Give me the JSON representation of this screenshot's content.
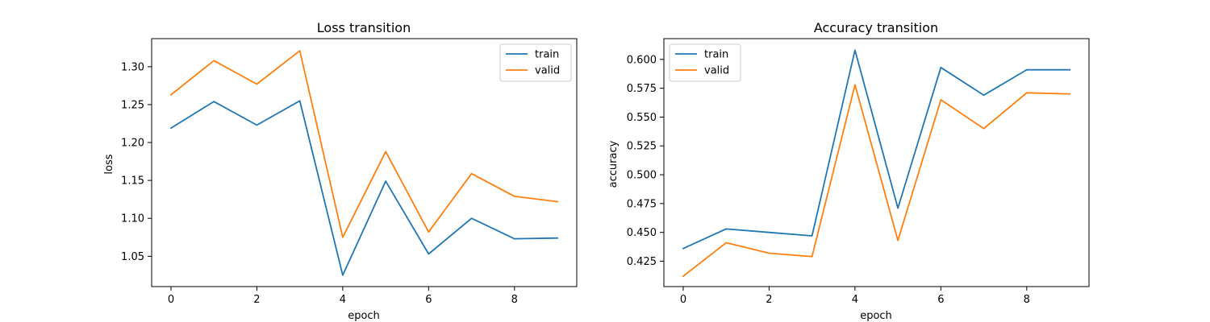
{
  "chart_data": [
    {
      "type": "line",
      "title": "Loss transition",
      "xlabel": "epoch",
      "ylabel": "loss",
      "xlim": [
        -0.45,
        9.45
      ],
      "ylim": [
        1.01,
        1.337
      ],
      "xticks": [
        0,
        2,
        4,
        6,
        8
      ],
      "yticks": [
        1.05,
        1.1,
        1.15,
        1.2,
        1.25,
        1.3
      ],
      "ytick_labels": [
        "1.05",
        "1.10",
        "1.15",
        "1.20",
        "1.25",
        "1.30"
      ],
      "grid": false,
      "legend_position": "top-right",
      "x": [
        0,
        1,
        2,
        3,
        4,
        5,
        6,
        7,
        8,
        9
      ],
      "series": [
        {
          "name": "train",
          "color": "#1f77b4",
          "values": [
            1.219,
            1.254,
            1.223,
            1.255,
            1.025,
            1.149,
            1.053,
            1.1,
            1.073,
            1.074
          ]
        },
        {
          "name": "valid",
          "color": "#ff7f0e",
          "values": [
            1.263,
            1.308,
            1.277,
            1.321,
            1.075,
            1.188,
            1.082,
            1.159,
            1.129,
            1.122
          ]
        }
      ]
    },
    {
      "type": "line",
      "title": "Accuracy transition",
      "xlabel": "epoch",
      "ylabel": "accuracy",
      "xlim": [
        -0.45,
        9.45
      ],
      "ylim": [
        0.403,
        0.618
      ],
      "xticks": [
        0,
        2,
        4,
        6,
        8
      ],
      "yticks": [
        0.425,
        0.45,
        0.475,
        0.5,
        0.525,
        0.55,
        0.575,
        0.6
      ],
      "ytick_labels": [
        "0.425",
        "0.450",
        "0.475",
        "0.500",
        "0.525",
        "0.550",
        "0.575",
        "0.600"
      ],
      "grid": false,
      "legend_position": "top-left",
      "x": [
        0,
        1,
        2,
        3,
        4,
        5,
        6,
        7,
        8,
        9
      ],
      "series": [
        {
          "name": "train",
          "color": "#1f77b4",
          "values": [
            0.436,
            0.453,
            0.45,
            0.447,
            0.608,
            0.471,
            0.593,
            0.569,
            0.591,
            0.591
          ]
        },
        {
          "name": "valid",
          "color": "#ff7f0e",
          "values": [
            0.412,
            0.441,
            0.432,
            0.429,
            0.578,
            0.443,
            0.565,
            0.54,
            0.571,
            0.57
          ]
        }
      ]
    }
  ]
}
